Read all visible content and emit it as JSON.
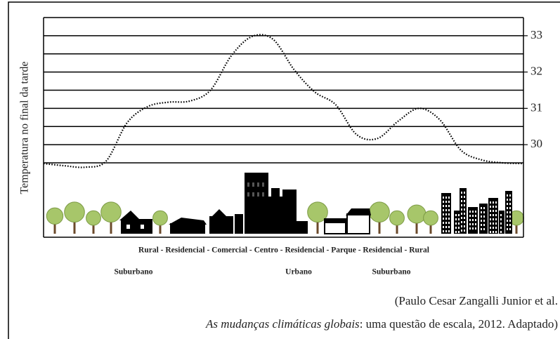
{
  "chart_data": {
    "type": "line",
    "y_axis_label": "Temperatura no final da tarde",
    "categories": [
      null,
      null,
      null,
      null,
      null,
      null,
      null,
      null,
      null,
      null,
      null,
      null,
      null,
      null,
      null,
      null,
      null,
      null,
      null,
      null,
      null,
      null,
      null,
      null
    ],
    "series": [
      {
        "color": "#000000",
        "values": [
          29.48,
          29.42,
          29.38,
          29.55,
          30.6,
          31.05,
          31.17,
          31.2,
          31.5,
          32.45,
          32.98,
          32.9,
          32.07,
          31.45,
          31.1,
          30.28,
          30.17,
          30.65,
          31.0,
          30.68,
          29.85,
          29.58,
          29.5,
          29.48
        ]
      }
    ],
    "ylim": [
      29.5,
      33.5
    ],
    "yticks": [
      30,
      31,
      32,
      33
    ],
    "grid_lines": [
      29.5,
      30,
      30.5,
      31,
      31.5,
      32,
      32.5,
      33,
      33.5
    ]
  },
  "zone_labels": {
    "line1": "Rural - Residencial - Comercial - Centro - Residencial - Parque - Residencial - Rural",
    "line2": [
      "Suburbano",
      "Urbano",
      "Suburbano"
    ]
  },
  "source": {
    "line1": "(Paulo Cesar Zangalli Junior et al.",
    "title": "As mudanças climáticas globais",
    "rest": ": uma questão de escala, 2012. Adaptado)"
  }
}
